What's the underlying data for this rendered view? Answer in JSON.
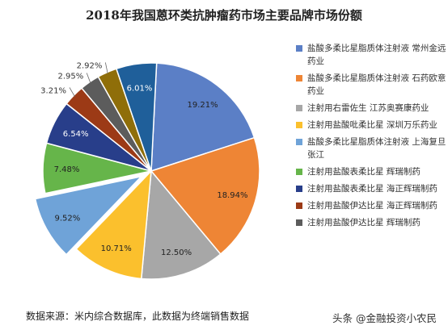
{
  "chart_data": {
    "type": "pie",
    "title": "2018年我国蒽环类抗肿瘤药市场主要品牌市场份额",
    "slices": [
      {
        "label": "19.21%",
        "value": 19.21,
        "color": "#5b7fc6"
      },
      {
        "label": "18.94%",
        "value": 18.94,
        "color": "#ee8535"
      },
      {
        "label": "12.50%",
        "value": 12.5,
        "color": "#a7a7a7"
      },
      {
        "label": "10.71%",
        "value": 10.71,
        "color": "#fbc02d"
      },
      {
        "label": "9.52%",
        "value": 9.52,
        "color": "#6fa3d8",
        "exploded": true
      },
      {
        "label": "7.48%",
        "value": 7.48,
        "color": "#66b54a"
      },
      {
        "label": "6.54%",
        "value": 6.54,
        "color": "#283e8a"
      },
      {
        "label": "3.21%",
        "value": 3.21,
        "color": "#9c3a16"
      },
      {
        "label": "2.95%",
        "value": 2.95,
        "color": "#5c5c5c"
      },
      {
        "label": "2.92%",
        "value": 2.92,
        "color": "#8f6e09"
      },
      {
        "label": "6.01%",
        "value": 6.01,
        "color": "#1f5f9a"
      }
    ],
    "legend": [
      {
        "text": "盐酸多柔比星脂质体注射液 常州金远药业",
        "color": "#5b7fc6"
      },
      {
        "text": "盐酸多柔比星脂质体注射液 石药欧意药业",
        "color": "#ee8535"
      },
      {
        "text": "注射用右雷佐生 江苏奥赛康药业",
        "color": "#a7a7a7"
      },
      {
        "text": "注射用盐酸吡柔比星 深圳万乐药业",
        "color": "#fbc02d"
      },
      {
        "text": "盐酸多柔比星脂质体注射液 上海复旦张江",
        "color": "#6fa3d8"
      },
      {
        "text": "注射用盐酸表柔比星 辉瑞制药",
        "color": "#66b54a"
      },
      {
        "text": "注射用盐酸表柔比星 海正辉瑞制药",
        "color": "#283e8a"
      },
      {
        "text": "注射用盐酸伊达比星 海正辉瑞制药",
        "color": "#9c3a16"
      },
      {
        "text": "注射用盐酸伊达比星 辉瑞制药",
        "color": "#5c5c5c"
      }
    ],
    "legend_position": "right"
  },
  "source": "数据来源：米内综合数据库，此数据为终端销售数据",
  "watermark": "头条 @金融投资小农民"
}
